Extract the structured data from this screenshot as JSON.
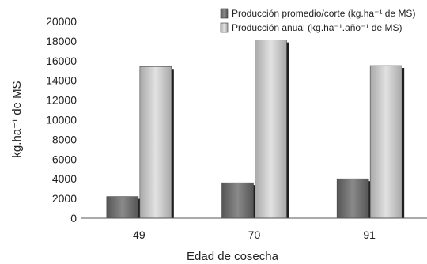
{
  "chart_data": {
    "type": "bar",
    "title": "",
    "categories": [
      "49",
      "70",
      "91"
    ],
    "series": [
      {
        "name": "Producción promedio/corte (kg.ha⁻¹ de MS)",
        "values": [
          2200,
          3600,
          4000
        ],
        "color": "#6d6d6d"
      },
      {
        "name": "Producción anual (kg.ha⁻¹.año⁻¹ de MS)",
        "values": [
          15400,
          18100,
          15500
        ],
        "color": "#bdbdbd"
      }
    ],
    "xlabel": "Edad de cosecha",
    "ylabel": "kg.ha⁻¹ de MS",
    "ylim": [
      0,
      20000
    ],
    "yticks": [
      0,
      2000,
      4000,
      6000,
      8000,
      10000,
      12000,
      14000,
      16000,
      18000,
      20000
    ],
    "grid": false,
    "legend_position": "top-right"
  }
}
